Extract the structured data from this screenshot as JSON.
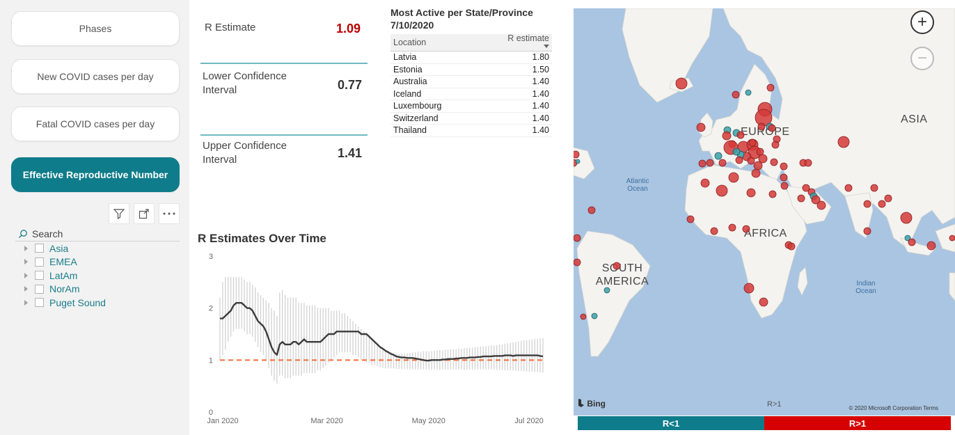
{
  "nav": {
    "buttons": [
      {
        "label": "Phases",
        "active": false
      },
      {
        "label": "New COVID cases per day",
        "active": false
      },
      {
        "label": "Fatal COVID cases per day",
        "active": false
      },
      {
        "label": "Effective Reproductive Number",
        "active": true
      }
    ],
    "accent": "#0e7c8a"
  },
  "slicer": {
    "search_placeholder": "Search",
    "items": [
      "Asia",
      "EMEA",
      "LatAm",
      "NorAm",
      "Puget Sound"
    ]
  },
  "kpis": {
    "r_estimate": {
      "label": "R Estimate",
      "value": "1.09",
      "color": "#c00000"
    },
    "lower": {
      "label": "Lower Confidence Interval",
      "value": "0.77"
    },
    "upper": {
      "label": "Upper Confidence Interval",
      "value": "1.41"
    }
  },
  "table": {
    "title_line1": "Most Active per State/Province",
    "title_line2": "7/10/2020",
    "columns": [
      "Location",
      "R estimate"
    ],
    "rows": [
      [
        "Latvia",
        "1.80"
      ],
      [
        "Estonia",
        "1.50"
      ],
      [
        "Australia",
        "1.40"
      ],
      [
        "Iceland",
        "1.40"
      ],
      [
        "Luxembourg",
        "1.40"
      ],
      [
        "Switzerland",
        "1.40"
      ],
      [
        "Thailand",
        "1.40"
      ]
    ]
  },
  "chart_data": {
    "type": "line",
    "title": "R Estimates Over Time",
    "ylim": [
      0,
      3
    ],
    "y_ticks": [
      "0",
      "1",
      "2",
      "3"
    ],
    "x_ticks": [
      "Jan 2020",
      "Mar 2020",
      "May 2020",
      "Jul 2020"
    ],
    "reference_line": 1,
    "series": [
      {
        "values": [
          1.8,
          1.8,
          1.85,
          1.9,
          1.95,
          2.05,
          2.1,
          2.1,
          2.1,
          2.05,
          2.0,
          2.0,
          1.95,
          1.85,
          1.75,
          1.7,
          1.65,
          1.55,
          1.4,
          1.25,
          1.15,
          1.1,
          1.3,
          1.35,
          1.3,
          1.3,
          1.3,
          1.35,
          1.35,
          1.3,
          1.35,
          1.4,
          1.35,
          1.35,
          1.35,
          1.35,
          1.35,
          1.35,
          1.4,
          1.45,
          1.5,
          1.5,
          1.5,
          1.55,
          1.55,
          1.55,
          1.55,
          1.55,
          1.55,
          1.55,
          1.55,
          1.55,
          1.5,
          1.5,
          1.5,
          1.45,
          1.4,
          1.35,
          1.3,
          1.25,
          1.22,
          1.18,
          1.15,
          1.12,
          1.1,
          1.07,
          1.06,
          1.05,
          1.05,
          1.04,
          1.04,
          1.04,
          1.03,
          1.02,
          1.01,
          1.0,
          0.99,
          0.99,
          1.0,
          1.0,
          1.0,
          1.0,
          1.01,
          1.01,
          1.02,
          1.02,
          1.02,
          1.03,
          1.03,
          1.04,
          1.04,
          1.04,
          1.05,
          1.05,
          1.05,
          1.06,
          1.06,
          1.07,
          1.07,
          1.07,
          1.07,
          1.08,
          1.08,
          1.08,
          1.08,
          1.09,
          1.09,
          1.09,
          1.08,
          1.09,
          1.09,
          1.09,
          1.09,
          1.09,
          1.09,
          1.09,
          1.09,
          1.09,
          1.08,
          1.07
        ]
      },
      {
        "values": [
          2.2,
          2.5,
          2.6,
          2.6,
          2.6,
          2.6,
          2.6,
          2.6,
          2.6,
          2.55,
          2.5,
          2.5,
          2.45,
          2.4,
          2.3,
          2.25,
          2.2,
          2.15,
          2.1,
          2.0,
          1.95,
          1.85,
          2.3,
          2.35,
          2.25,
          2.2,
          2.2,
          2.2,
          2.2,
          2.1,
          2.1,
          2.1,
          2.05,
          2.05,
          2.05,
          2.05,
          2.0,
          2.0,
          2.0,
          2.0,
          2.0,
          1.95,
          1.95,
          1.95,
          1.95,
          1.9,
          1.9,
          1.85,
          1.8,
          1.75,
          1.7,
          1.65,
          1.6,
          1.55,
          1.5,
          1.45,
          1.4,
          1.35,
          1.3,
          1.25,
          1.22,
          1.2,
          1.18,
          1.15,
          1.13,
          1.12,
          1.12,
          1.12,
          1.12,
          1.13,
          1.14,
          1.15,
          1.15,
          1.16,
          1.16,
          1.17,
          1.17,
          1.17,
          1.17,
          1.18,
          1.18,
          1.19,
          1.19,
          1.2,
          1.2,
          1.21,
          1.21,
          1.21,
          1.22,
          1.22,
          1.23,
          1.23,
          1.24,
          1.24,
          1.25,
          1.25,
          1.26,
          1.26,
          1.27,
          1.27,
          1.28,
          1.28,
          1.29,
          1.3,
          1.3,
          1.31,
          1.32,
          1.33,
          1.34,
          1.35,
          1.36,
          1.37,
          1.38,
          1.38,
          1.39,
          1.4,
          1.41,
          1.41,
          1.42,
          1.42
        ]
      },
      {
        "values": [
          1.0,
          1.1,
          1.2,
          1.35,
          1.45,
          1.55,
          1.6,
          1.6,
          1.6,
          1.55,
          1.5,
          1.5,
          1.45,
          1.35,
          1.25,
          1.15,
          1.1,
          1.0,
          0.85,
          0.7,
          0.6,
          0.55,
          0.7,
          0.7,
          0.65,
          0.65,
          0.65,
          0.7,
          0.7,
          0.7,
          0.7,
          0.75,
          0.75,
          0.75,
          0.75,
          0.75,
          0.8,
          0.8,
          0.85,
          0.9,
          0.95,
          1.0,
          1.05,
          1.1,
          1.15,
          1.15,
          1.15,
          1.15,
          1.15,
          1.1,
          1.1,
          1.05,
          1.0,
          1.0,
          0.95,
          0.95,
          0.9,
          0.9,
          0.88,
          0.86,
          0.85,
          0.84,
          0.84,
          0.84,
          0.84,
          0.83,
          0.83,
          0.83,
          0.83,
          0.83,
          0.82,
          0.82,
          0.82,
          0.82,
          0.82,
          0.82,
          0.82,
          0.82,
          0.82,
          0.82,
          0.82,
          0.82,
          0.82,
          0.82,
          0.82,
          0.82,
          0.82,
          0.82,
          0.82,
          0.82,
          0.82,
          0.82,
          0.82,
          0.82,
          0.82,
          0.82,
          0.82,
          0.82,
          0.82,
          0.82,
          0.82,
          0.82,
          0.81,
          0.81,
          0.81,
          0.8,
          0.8,
          0.8,
          0.8,
          0.79,
          0.79,
          0.79,
          0.79,
          0.78,
          0.78,
          0.78,
          0.77,
          0.77,
          0.76,
          0.76
        ]
      }
    ]
  },
  "map": {
    "labels": [
      "EUROPE",
      "ASIA",
      "AFRICA",
      "SOUTH AMERICA"
    ],
    "oceans": [
      "Atlantic Ocean",
      "Indian Ocean"
    ],
    "attribution": "Bing",
    "copyright": "© 2020 Microsoft Corporation Terms",
    "legend_tick": "R>1",
    "red": "#d43a3a",
    "teal": "#3aa0a8"
  },
  "legend": {
    "low_label": "R<1",
    "high_label": "R>1",
    "low_color": "#0e7c8a",
    "high_color": "#d60000"
  }
}
